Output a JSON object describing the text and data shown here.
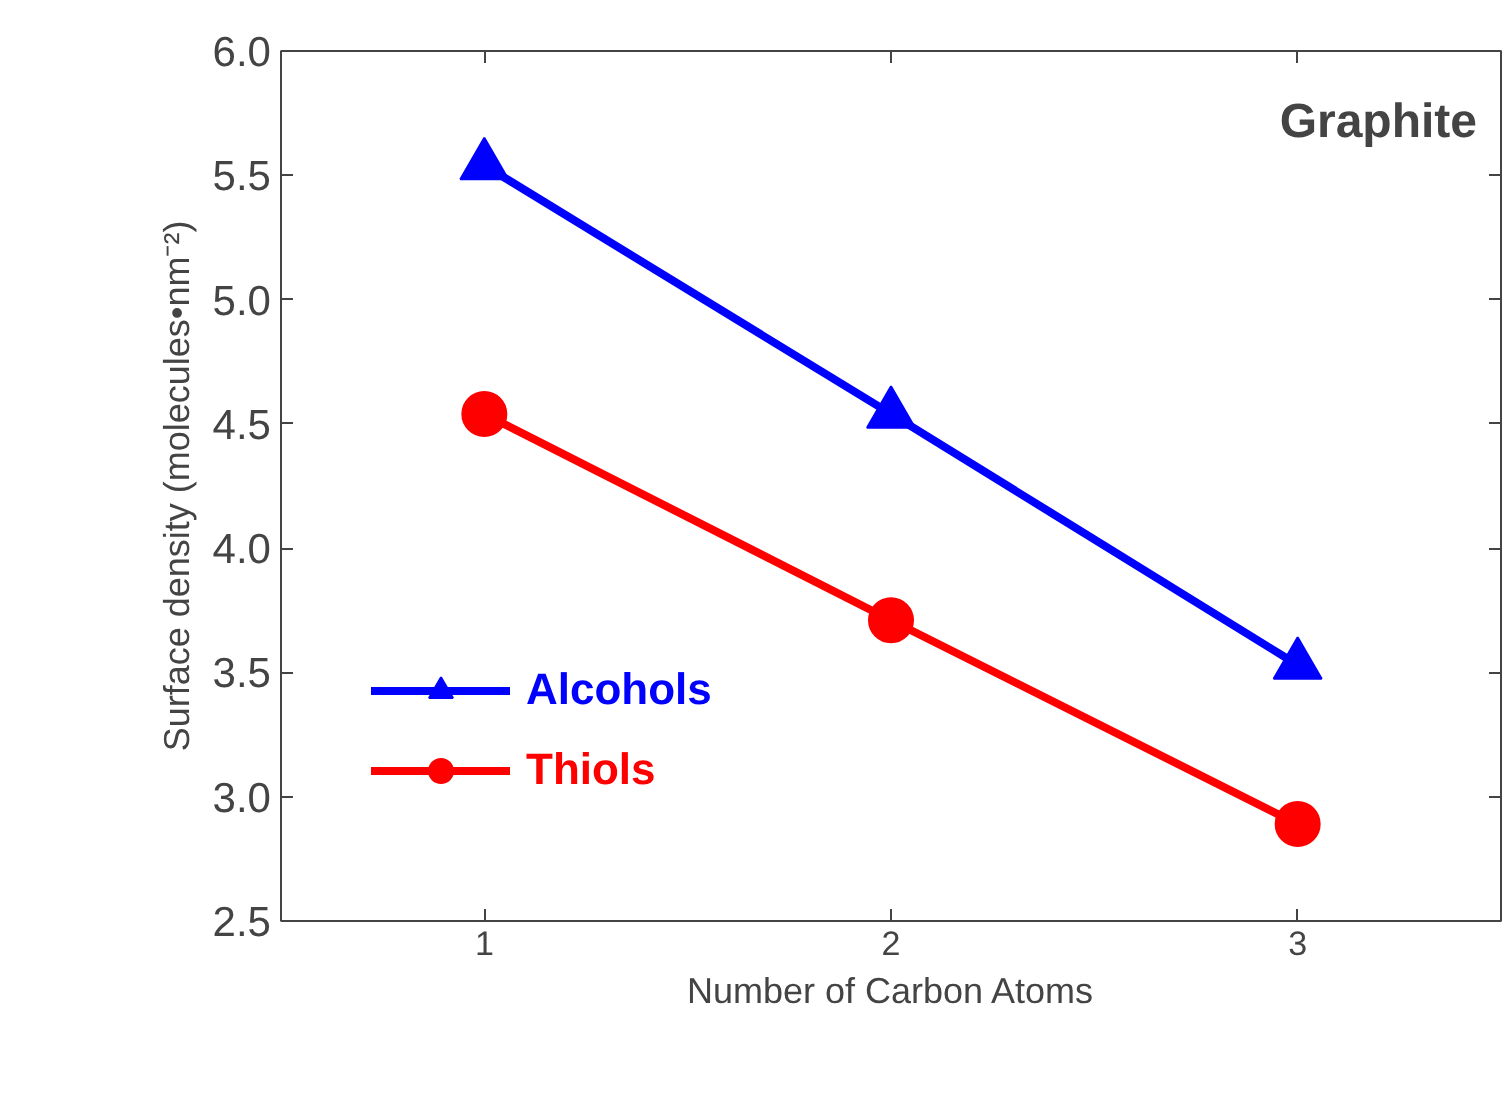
{
  "chart_data": {
    "type": "line",
    "xlabel": "Number of Carbon Atoms",
    "ylabel": "Surface density (molecules•nm⁻²)",
    "annotations": [
      "Graphite"
    ],
    "x": [
      1,
      2,
      3
    ],
    "xlim": [
      0.5,
      3.5
    ],
    "xticks": [
      1,
      2,
      3
    ],
    "ylim": [
      2.5,
      6.0
    ],
    "yticks": [
      {
        "value": 2.5,
        "label": "2.5"
      },
      {
        "value": 3.0,
        "label": "3.0"
      },
      {
        "value": 3.5,
        "label": "3.5"
      },
      {
        "value": 4.0,
        "label": "4.0"
      },
      {
        "value": 4.5,
        "label": "4.5"
      },
      {
        "value": 5.0,
        "label": "5.0"
      },
      {
        "value": 5.5,
        "label": "5.5"
      },
      {
        "value": 6.0,
        "label": "6.0"
      }
    ],
    "series": [
      {
        "name": "Alcohols",
        "color": "#0000ff",
        "marker": "triangle",
        "values": [
          5.54,
          4.54,
          3.53
        ]
      },
      {
        "name": "Thiols",
        "color": "#ff0000",
        "marker": "circle",
        "values": [
          4.54,
          3.71,
          2.89
        ]
      }
    ],
    "legend": "bottom left",
    "grid": false,
    "line_style": "solid"
  }
}
